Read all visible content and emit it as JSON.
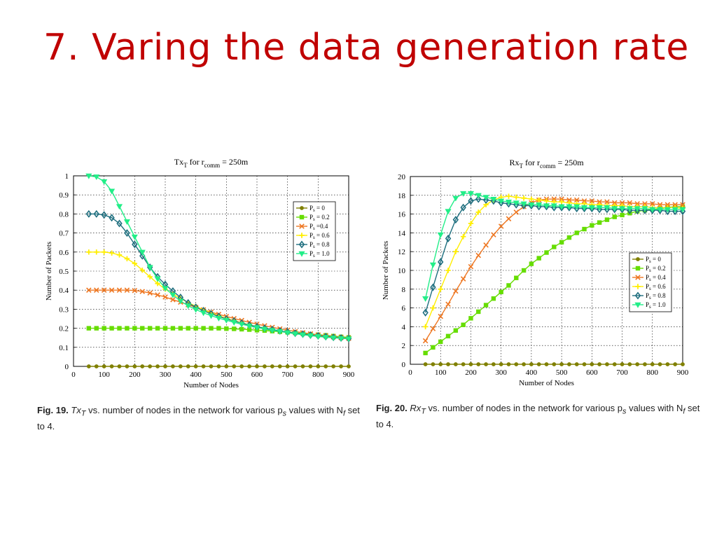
{
  "slide": {
    "title": "7. Varing the data generation rate"
  },
  "captions": [
    {
      "label": "Fig. 19.",
      "text": "Tx",
      "sub": "T",
      "rest": " vs. number of nodes in the network for various p",
      "sub2": "s",
      "rest2": " values with N",
      "sub3": "f",
      "rest3": " set to 4."
    },
    {
      "label": "Fig. 20.",
      "text": "Rx",
      "sub": "T",
      "rest": " vs. number of nodes in the network for various p",
      "sub2": "s",
      "rest2": " values with N",
      "sub3": "f",
      "rest3": " set to 4."
    }
  ],
  "colors": {
    "title": "#c00000"
  },
  "chart_data": [
    {
      "type": "line",
      "title_main": "Tx",
      "title_sub": "T",
      "title_mid": " for r",
      "title_sub2": "comm",
      "title_end": " = 250m",
      "xlabel": "Number of Nodes",
      "ylabel": "Number of Packets",
      "xlim": [
        0,
        900
      ],
      "ylim": [
        0,
        1
      ],
      "xticks": [
        "0",
        "100",
        "200",
        "300",
        "400",
        "500",
        "600",
        "700",
        "800",
        "900"
      ],
      "yticks": [
        "0",
        "0.1",
        "0.2",
        "0.3",
        "0.4",
        "0.5",
        "0.6",
        "0.7",
        "0.8",
        "0.9",
        "1"
      ],
      "grid": true,
      "legend_position": "right-upper",
      "x": [
        50,
        75,
        100,
        125,
        150,
        175,
        200,
        225,
        250,
        275,
        300,
        325,
        350,
        375,
        400,
        425,
        450,
        475,
        500,
        525,
        550,
        575,
        600,
        625,
        650,
        675,
        700,
        725,
        750,
        775,
        800,
        825,
        850,
        875,
        900
      ],
      "series": [
        {
          "name": "P_s = 0",
          "sub_label": [
            "P",
            "s",
            " = 0"
          ],
          "color": "#808000",
          "marker": "circle",
          "values": [
            0,
            0,
            0,
            0,
            0,
            0,
            0,
            0,
            0,
            0,
            0,
            0,
            0,
            0,
            0,
            0,
            0,
            0,
            0,
            0,
            0,
            0,
            0,
            0,
            0,
            0,
            0,
            0,
            0,
            0,
            0,
            0,
            0,
            0,
            0
          ]
        },
        {
          "name": "P_s = 0.2",
          "sub_label": [
            "P",
            "s",
            " = 0.2"
          ],
          "color": "#66dd00",
          "marker": "square",
          "values": [
            0.2,
            0.2,
            0.2,
            0.2,
            0.2,
            0.2,
            0.2,
            0.2,
            0.2,
            0.2,
            0.2,
            0.2,
            0.2,
            0.2,
            0.2,
            0.2,
            0.2,
            0.2,
            0.198,
            0.197,
            0.195,
            0.193,
            0.19,
            0.188,
            0.185,
            0.182,
            0.179,
            0.176,
            0.172,
            0.169,
            0.166,
            0.163,
            0.159,
            0.155,
            0.152
          ]
        },
        {
          "name": "P_s = 0.4",
          "sub_label": [
            "P",
            "s",
            " =0.4"
          ],
          "color": "#ee7722",
          "marker": "x",
          "values": [
            0.4,
            0.4,
            0.4,
            0.4,
            0.4,
            0.4,
            0.398,
            0.393,
            0.385,
            0.375,
            0.364,
            0.35,
            0.337,
            0.323,
            0.31,
            0.297,
            0.285,
            0.273,
            0.262,
            0.251,
            0.241,
            0.231,
            0.222,
            0.213,
            0.205,
            0.197,
            0.19,
            0.183,
            0.177,
            0.171,
            0.165,
            0.16,
            0.155,
            0.151,
            0.147
          ]
        },
        {
          "name": "P_s = 0.6",
          "sub_label": [
            "P",
            "s",
            " = 0.6"
          ],
          "color": "#ffee00",
          "marker": "plus",
          "values": [
            0.6,
            0.6,
            0.6,
            0.595,
            0.585,
            0.565,
            0.54,
            0.505,
            0.47,
            0.435,
            0.405,
            0.38,
            0.357,
            0.335,
            0.315,
            0.297,
            0.281,
            0.266,
            0.252,
            0.24,
            0.229,
            0.218,
            0.209,
            0.2,
            0.192,
            0.185,
            0.178,
            0.172,
            0.167,
            0.162,
            0.158,
            0.155,
            0.151,
            0.148,
            0.146
          ]
        },
        {
          "name": "P_s = 0.8",
          "sub_label": [
            "P",
            "s",
            " = 0.8"
          ],
          "color": "#1f6f7f",
          "marker": "diamond",
          "values": [
            0.8,
            0.8,
            0.795,
            0.78,
            0.75,
            0.7,
            0.64,
            0.58,
            0.52,
            0.47,
            0.43,
            0.395,
            0.362,
            0.333,
            0.31,
            0.292,
            0.276,
            0.262,
            0.249,
            0.238,
            0.227,
            0.217,
            0.208,
            0.2,
            0.193,
            0.186,
            0.18,
            0.174,
            0.169,
            0.164,
            0.16,
            0.156,
            0.152,
            0.149,
            0.146
          ]
        },
        {
          "name": "P_s = 1.0",
          "sub_label": [
            "P",
            "s",
            " = 1.0"
          ],
          "color": "#22ee88",
          "marker": "triangle",
          "values": [
            1.0,
            0.995,
            0.97,
            0.92,
            0.84,
            0.76,
            0.68,
            0.6,
            0.52,
            0.46,
            0.41,
            0.375,
            0.343,
            0.318,
            0.298,
            0.281,
            0.266,
            0.253,
            0.242,
            0.231,
            0.221,
            0.212,
            0.204,
            0.196,
            0.189,
            0.183,
            0.177,
            0.171,
            0.166,
            0.161,
            0.157,
            0.153,
            0.15,
            0.147,
            0.145
          ]
        }
      ]
    },
    {
      "type": "line",
      "title_main": "Rx",
      "title_sub": "T",
      "title_mid": " for r",
      "title_sub2": "comm",
      "title_end": " = 250m",
      "xlabel": "Number of Nodes",
      "ylabel": "Number of Packets",
      "xlim": [
        0,
        900
      ],
      "ylim": [
        0,
        20
      ],
      "xticks": [
        "0",
        "100",
        "200",
        "300",
        "400",
        "500",
        "600",
        "700",
        "800",
        "900"
      ],
      "yticks": [
        "0",
        "2",
        "4",
        "6",
        "8",
        "10",
        "12",
        "14",
        "16",
        "18",
        "20"
      ],
      "grid": true,
      "legend_position": "right-middle",
      "x": [
        50,
        75,
        100,
        125,
        150,
        175,
        200,
        225,
        250,
        275,
        300,
        325,
        350,
        375,
        400,
        425,
        450,
        475,
        500,
        525,
        550,
        575,
        600,
        625,
        650,
        675,
        700,
        725,
        750,
        775,
        800,
        825,
        850,
        875,
        900
      ],
      "series": [
        {
          "name": "P_s = 0",
          "sub_label": [
            "P",
            "s",
            " = 0"
          ],
          "color": "#808000",
          "marker": "circle",
          "values": [
            0,
            0,
            0,
            0,
            0,
            0,
            0,
            0,
            0,
            0,
            0,
            0,
            0,
            0,
            0,
            0,
            0,
            0,
            0,
            0,
            0,
            0,
            0,
            0,
            0,
            0,
            0,
            0,
            0,
            0,
            0,
            0,
            0,
            0,
            0
          ]
        },
        {
          "name": "P_s = 0.2",
          "sub_label": [
            "P",
            "s",
            " = 0.2"
          ],
          "color": "#66dd00",
          "marker": "square",
          "values": [
            1.2,
            1.8,
            2.4,
            3.0,
            3.6,
            4.2,
            4.9,
            5.6,
            6.3,
            7.0,
            7.7,
            8.4,
            9.2,
            10.0,
            10.7,
            11.3,
            11.9,
            12.5,
            13.0,
            13.5,
            14.0,
            14.4,
            14.8,
            15.1,
            15.4,
            15.7,
            15.9,
            16.1,
            16.3,
            16.4,
            16.5,
            16.6,
            16.7,
            16.8,
            16.8
          ]
        },
        {
          "name": "P_s = 0.4",
          "sub_label": [
            "P",
            "s",
            " = 0.4"
          ],
          "color": "#ee7722",
          "marker": "x",
          "values": [
            2.5,
            3.8,
            5.1,
            6.4,
            7.8,
            9.1,
            10.4,
            11.6,
            12.7,
            13.8,
            14.7,
            15.5,
            16.2,
            16.8,
            17.2,
            17.5,
            17.6,
            17.6,
            17.6,
            17.5,
            17.5,
            17.4,
            17.4,
            17.3,
            17.3,
            17.2,
            17.2,
            17.2,
            17.1,
            17.1,
            17.1,
            17.0,
            17.0,
            17.0,
            17.0
          ]
        },
        {
          "name": "P_s = 0.6",
          "sub_label": [
            "P",
            "s",
            " = 0.6"
          ],
          "color": "#ffee00",
          "marker": "plus",
          "values": [
            4.0,
            6.0,
            8.0,
            10.0,
            12.0,
            13.6,
            15.0,
            16.2,
            17.0,
            17.5,
            17.8,
            17.9,
            17.8,
            17.7,
            17.6,
            17.5,
            17.4,
            17.3,
            17.3,
            17.2,
            17.1,
            17.1,
            17.0,
            17.0,
            16.9,
            16.9,
            16.9,
            16.8,
            16.8,
            16.8,
            16.7,
            16.7,
            16.7,
            16.7,
            16.6
          ]
        },
        {
          "name": "P_s = 0.8",
          "sub_label": [
            "P",
            "s",
            " = 0.8"
          ],
          "color": "#1f6f7f",
          "marker": "diamond",
          "values": [
            5.5,
            8.2,
            10.9,
            13.4,
            15.4,
            16.7,
            17.4,
            17.6,
            17.5,
            17.4,
            17.2,
            17.1,
            17.0,
            16.9,
            16.9,
            16.8,
            16.8,
            16.7,
            16.7,
            16.7,
            16.6,
            16.6,
            16.6,
            16.5,
            16.5,
            16.5,
            16.5,
            16.4,
            16.4,
            16.4,
            16.4,
            16.4,
            16.3,
            16.3,
            16.3
          ]
        },
        {
          "name": "P_s = 1.0",
          "sub_label": [
            "P",
            "s",
            " = 1.0"
          ],
          "color": "#22ee88",
          "marker": "triangle",
          "values": [
            7.0,
            10.6,
            13.8,
            16.3,
            17.7,
            18.2,
            18.2,
            18.0,
            17.8,
            17.6,
            17.4,
            17.3,
            17.2,
            17.1,
            17.0,
            17.0,
            16.9,
            16.9,
            16.8,
            16.8,
            16.8,
            16.7,
            16.7,
            16.7,
            16.7,
            16.6,
            16.6,
            16.6,
            16.6,
            16.6,
            16.5,
            16.5,
            16.5,
            16.5,
            16.5
          ]
        }
      ]
    }
  ]
}
